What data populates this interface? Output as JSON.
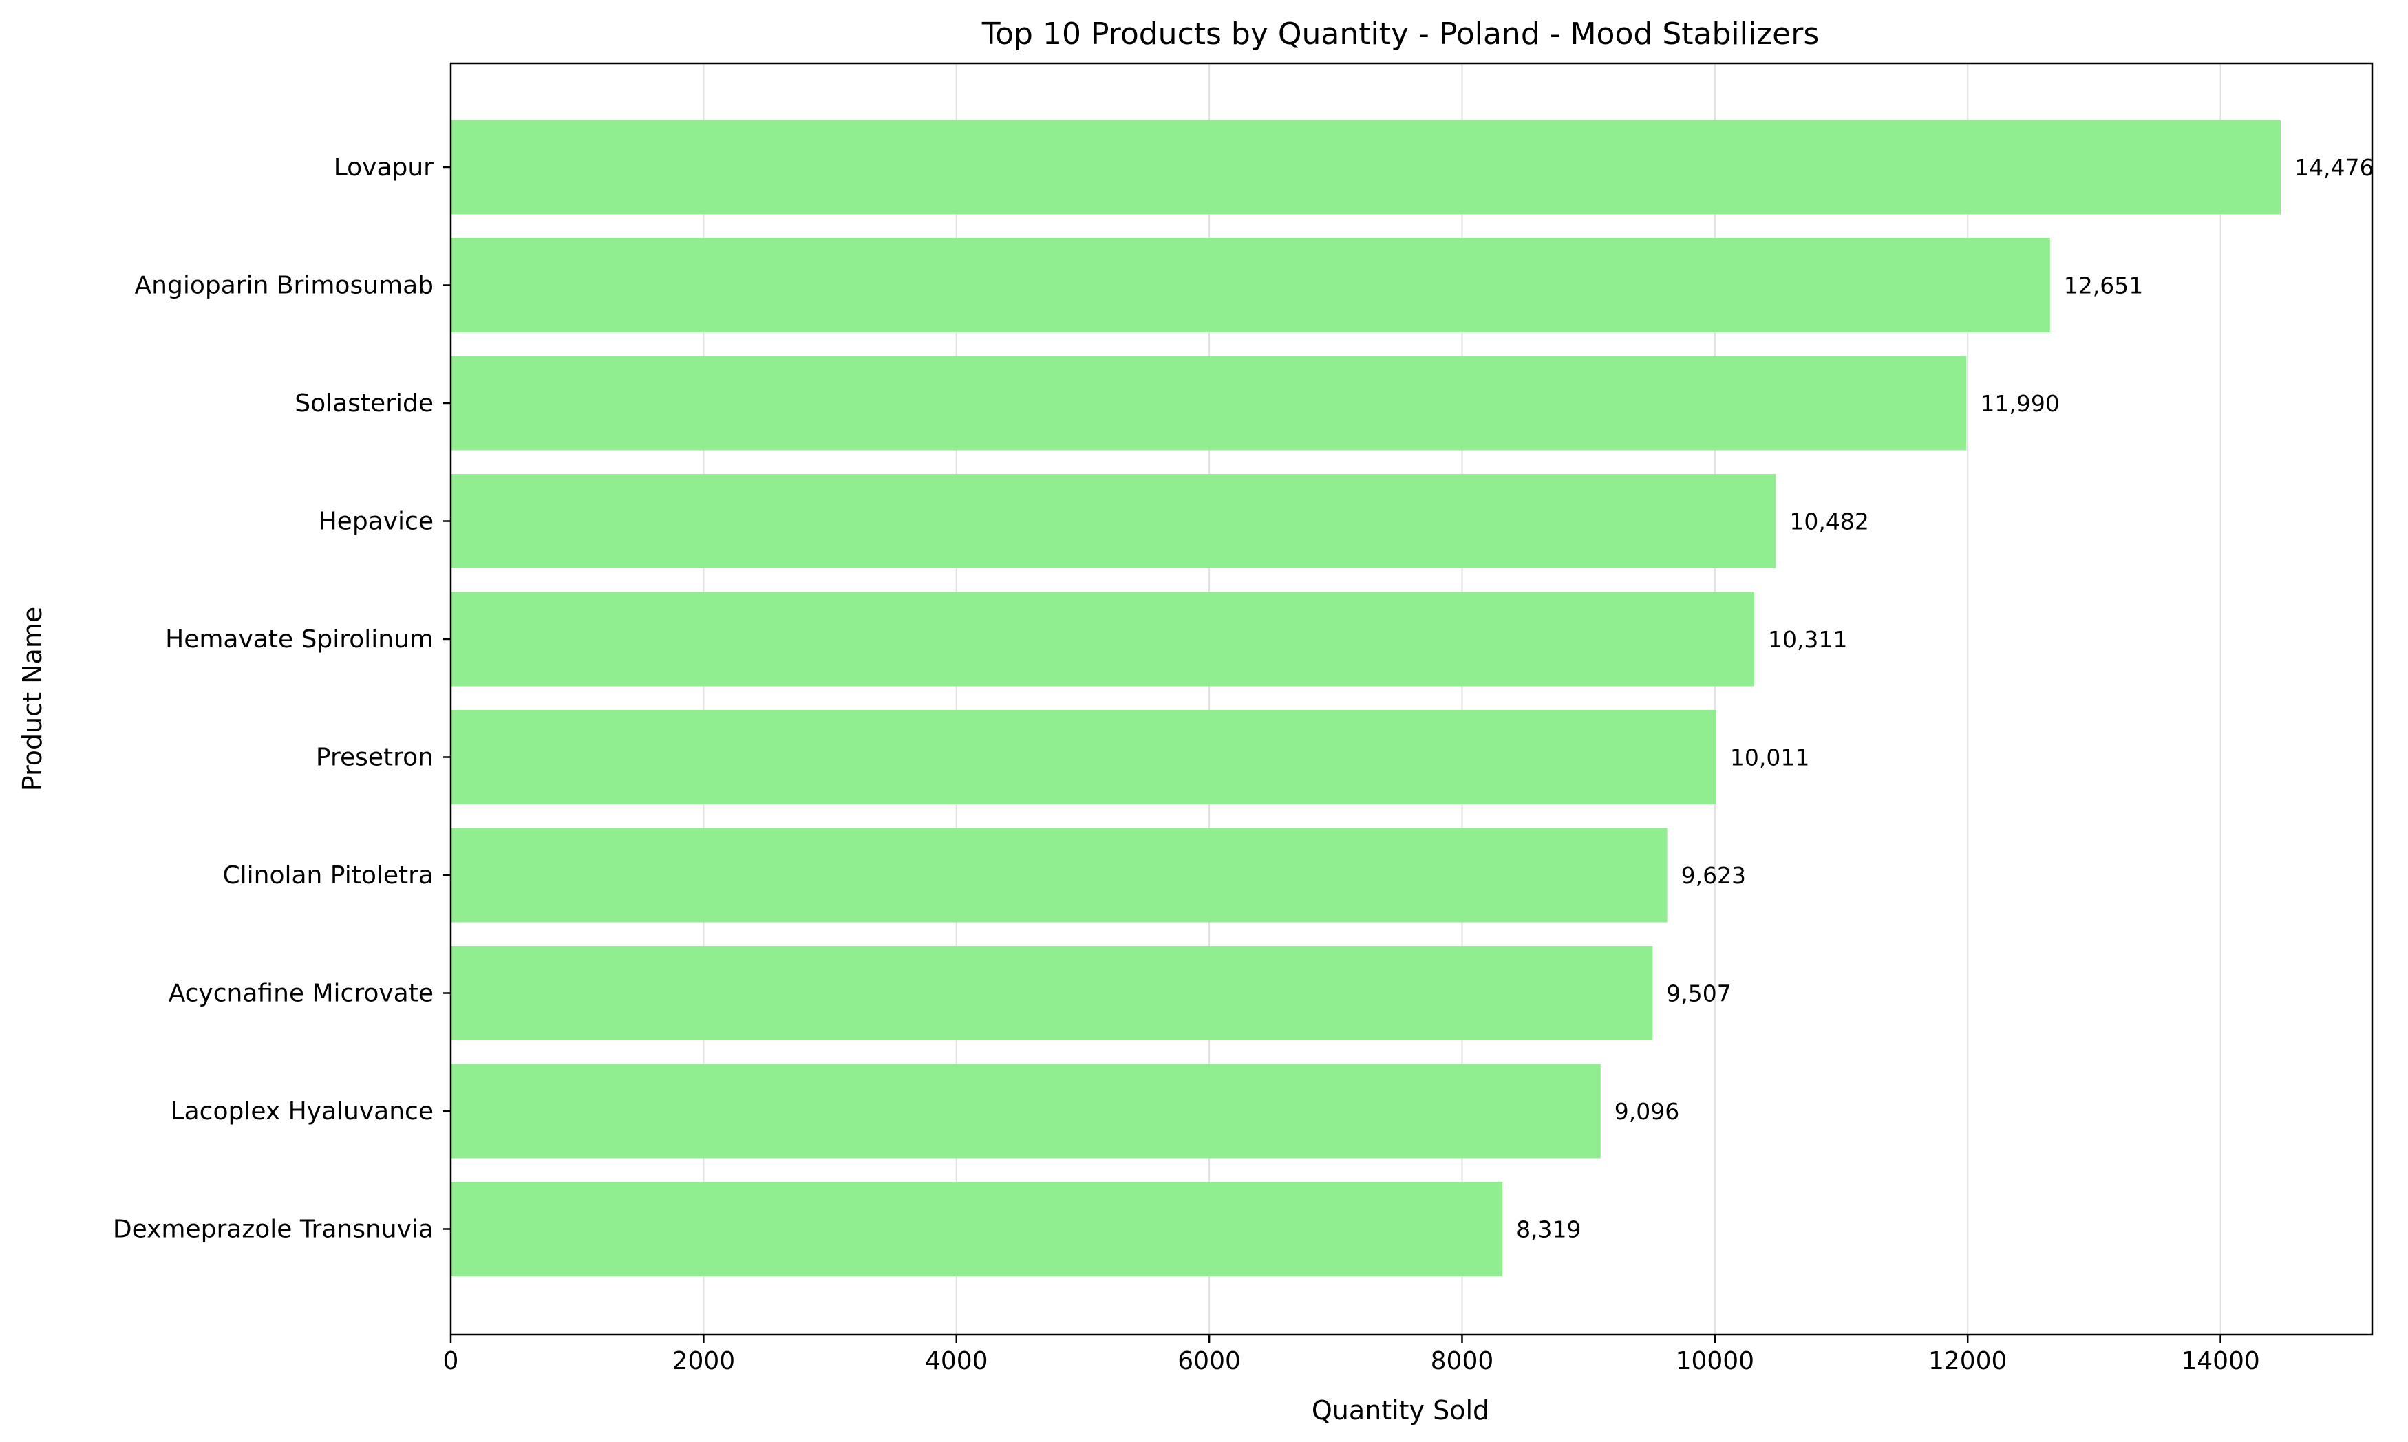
{
  "chart_data": {
    "type": "bar",
    "orientation": "horizontal",
    "title": "Top 10 Products by Quantity - Poland - Mood Stabilizers",
    "xlabel": "Quantity Sold",
    "ylabel": "Product Name",
    "xlim": [
      0,
      15200
    ],
    "x_ticks": [
      0,
      2000,
      4000,
      6000,
      8000,
      10000,
      12000,
      14000
    ],
    "x_tick_labels": [
      "0",
      "2000",
      "4000",
      "6000",
      "8000",
      "10000",
      "12000",
      "14000"
    ],
    "grid": "vertical",
    "bar_color": "#90ee90",
    "categories": [
      "Lovapur",
      "Angioparin Brimosumab",
      "Solasteride",
      "Hepavice",
      "Hemavate Spirolinum",
      "Presetron",
      "Clinolan Pitoletra",
      "Acycnafine Microvate",
      "Lacoplex Hyaluvance",
      "Dexmeprazole Transnuvia"
    ],
    "values": [
      14476,
      12651,
      11990,
      10482,
      10311,
      10011,
      9623,
      9507,
      9096,
      8319
    ],
    "data_labels": [
      "14,476",
      "12,651",
      "11,990",
      "10,482",
      "10,311",
      "10,011",
      "9,623",
      "9,507",
      "9,096",
      "8,319"
    ]
  }
}
